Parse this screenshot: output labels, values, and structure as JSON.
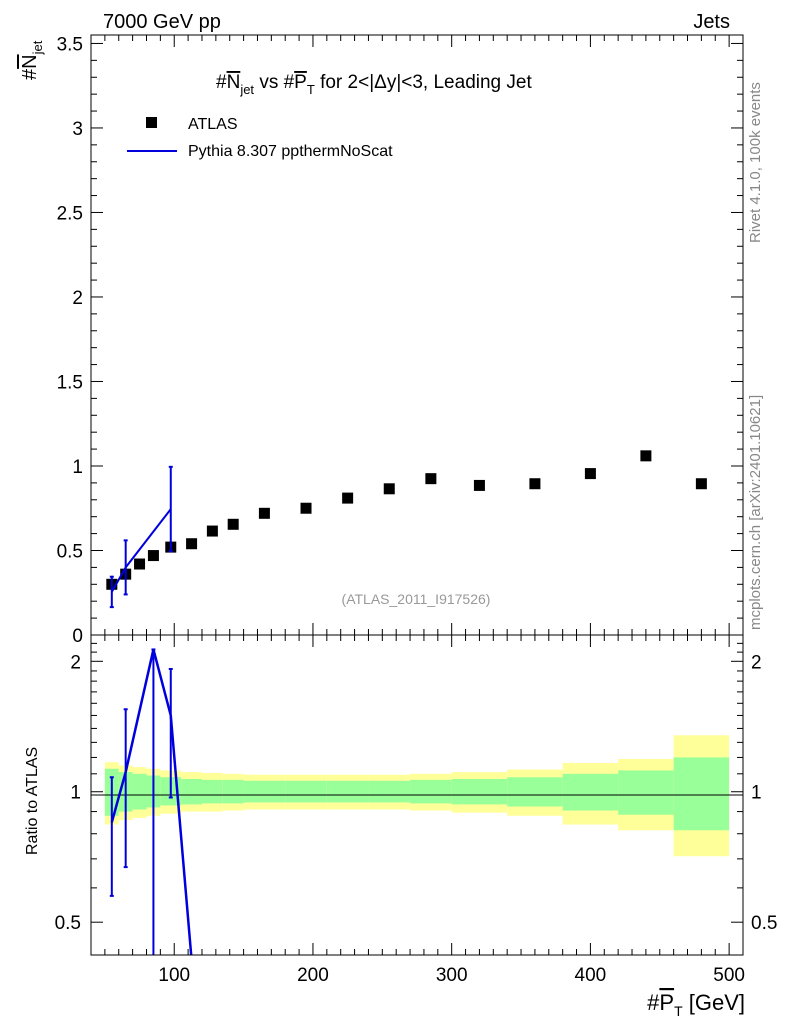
{
  "header": {
    "left": "7000 GeV pp",
    "right": "Jets"
  },
  "side_labels": {
    "rivet": "Rivet 4.1.0,  100k events",
    "mcplots": "mcplots.cern.ch [arXiv:2401.10621]"
  },
  "main_panel": {
    "title": "#N̅jet vs #P̅T for 2<|Δy|<3, Leading Jet",
    "title_parts": {
      "hash1": "#",
      "n": "N",
      "n_sub": "jet",
      "vs": " vs #",
      "p": "P",
      "p_sub": "T",
      "rest": " for 2<|Δy|<3, Leading Jet"
    },
    "ylabel": "#N̅jet",
    "ylabel_parts": {
      "hash": "#",
      "main": "N",
      "sub": "jet"
    },
    "watermark": "(ATLAS_2011_I917526)",
    "legend": [
      {
        "label": "ATLAS",
        "style": "marker",
        "color": "#000000"
      },
      {
        "label": "Pythia 8.307 ppthermNoScat",
        "style": "line",
        "color": "#0000dd"
      }
    ]
  },
  "ratio_panel": {
    "ylabel": "Ratio to ATLAS"
  },
  "xaxis": {
    "label": "#P̅T [GeV]",
    "label_parts": {
      "hash": "#",
      "main": "P",
      "sub": "T",
      "unit": " [GeV]"
    }
  },
  "colors": {
    "data": "#000000",
    "mc": "#0000dd",
    "band_inner": "#99ff99",
    "band_outer": "#ffff99",
    "watermark": "#999999",
    "side_text": "#888888"
  },
  "chart_data": [
    {
      "type": "scatter",
      "panel": "main",
      "title": "#N̅jet vs #P̅T for 2<|Δy|<3, Leading Jet",
      "xlabel": "#P̅T [GeV]",
      "ylabel": "#N̅jet",
      "xlim": [
        40,
        510
      ],
      "ylim": [
        0,
        3.55
      ],
      "y_ticks": [
        0,
        0.5,
        1,
        1.5,
        2,
        2.5,
        3,
        3.5
      ],
      "y_tick_labels": [
        "0",
        "0.5",
        "1",
        "1.5",
        "2",
        "2.5",
        "3",
        "3.5"
      ],
      "series": [
        {
          "name": "ATLAS",
          "kind": "data",
          "x": [
            55,
            65,
            75,
            85,
            97.5,
            112.5,
            127.5,
            142.5,
            165,
            195,
            225,
            255,
            285,
            320,
            360,
            400,
            440,
            480
          ],
          "y": [
            0.3,
            0.36,
            0.42,
            0.47,
            0.52,
            0.54,
            0.615,
            0.655,
            0.72,
            0.75,
            0.81,
            0.865,
            0.925,
            0.885,
            0.895,
            0.955,
            1.06,
            0.895
          ]
        },
        {
          "name": "Pythia 8.307 ppthermNoScat",
          "kind": "mc",
          "x": [
            55,
            65,
            97.5
          ],
          "y": [
            0.255,
            0.4,
            0.745
          ],
          "yerr": [
            0.09,
            0.16,
            0.25
          ]
        }
      ]
    },
    {
      "type": "line",
      "panel": "ratio",
      "ylabel": "Ratio to ATLAS",
      "xlabel": "#P̅T [GeV]",
      "xlim": [
        40,
        510
      ],
      "ylim": [
        0.42,
        2.3
      ],
      "y_scale": "log",
      "y_ticks": [
        0.5,
        1,
        2
      ],
      "y_tick_labels": [
        "0.5",
        "1",
        "2"
      ],
      "x_ticks": [
        100,
        200,
        300,
        400,
        500
      ],
      "x_tick_labels": [
        "100",
        "200",
        "300",
        "400",
        "500"
      ],
      "bins": [
        {
          "lo": 50,
          "hi": 60,
          "inner": [
            0.88,
            1.13
          ],
          "outer": [
            0.84,
            1.17
          ]
        },
        {
          "lo": 60,
          "hi": 70,
          "inner": [
            0.9,
            1.11
          ],
          "outer": [
            0.86,
            1.15
          ]
        },
        {
          "lo": 70,
          "hi": 80,
          "inner": [
            0.91,
            1.1
          ],
          "outer": [
            0.87,
            1.14
          ]
        },
        {
          "lo": 80,
          "hi": 90,
          "inner": [
            0.92,
            1.09
          ],
          "outer": [
            0.88,
            1.13
          ]
        },
        {
          "lo": 90,
          "hi": 105,
          "inner": [
            0.93,
            1.08
          ],
          "outer": [
            0.89,
            1.12
          ]
        },
        {
          "lo": 105,
          "hi": 120,
          "inner": [
            0.935,
            1.07
          ],
          "outer": [
            0.9,
            1.11
          ]
        },
        {
          "lo": 120,
          "hi": 135,
          "inner": [
            0.94,
            1.065
          ],
          "outer": [
            0.9,
            1.105
          ]
        },
        {
          "lo": 135,
          "hi": 150,
          "inner": [
            0.94,
            1.065
          ],
          "outer": [
            0.905,
            1.1
          ]
        },
        {
          "lo": 150,
          "hi": 180,
          "inner": [
            0.945,
            1.06
          ],
          "outer": [
            0.91,
            1.095
          ]
        },
        {
          "lo": 180,
          "hi": 210,
          "inner": [
            0.945,
            1.06
          ],
          "outer": [
            0.91,
            1.095
          ]
        },
        {
          "lo": 210,
          "hi": 240,
          "inner": [
            0.945,
            1.06
          ],
          "outer": [
            0.91,
            1.095
          ]
        },
        {
          "lo": 240,
          "hi": 270,
          "inner": [
            0.945,
            1.06
          ],
          "outer": [
            0.91,
            1.095
          ]
        },
        {
          "lo": 270,
          "hi": 300,
          "inner": [
            0.94,
            1.065
          ],
          "outer": [
            0.905,
            1.1
          ]
        },
        {
          "lo": 300,
          "hi": 340,
          "inner": [
            0.935,
            1.07
          ],
          "outer": [
            0.895,
            1.11
          ]
        },
        {
          "lo": 340,
          "hi": 380,
          "inner": [
            0.925,
            1.08
          ],
          "outer": [
            0.88,
            1.125
          ]
        },
        {
          "lo": 380,
          "hi": 420,
          "inner": [
            0.905,
            1.1
          ],
          "outer": [
            0.84,
            1.165
          ]
        },
        {
          "lo": 420,
          "hi": 460,
          "inner": [
            0.885,
            1.12
          ],
          "outer": [
            0.815,
            1.19
          ]
        },
        {
          "lo": 460,
          "hi": 500,
          "inner": [
            0.815,
            1.2
          ],
          "outer": [
            0.71,
            1.35
          ]
        }
      ],
      "series": [
        {
          "name": "Pythia 8.307 ppthermNoScat",
          "x": [
            55,
            65,
            85,
            97.5,
            112.5
          ],
          "y": [
            0.85,
            1.11,
            2.13,
            1.5,
            0.41
          ],
          "err_points": [
            {
              "x": 55,
              "lo": 0.575,
              "hi": 1.08
            },
            {
              "x": 65,
              "lo": 0.67,
              "hi": 1.55
            },
            {
              "x": 85,
              "lo": 0.41,
              "hi": 2.13
            },
            {
              "x": 97.5,
              "lo": 0.97,
              "hi": 1.92
            }
          ]
        }
      ]
    }
  ]
}
